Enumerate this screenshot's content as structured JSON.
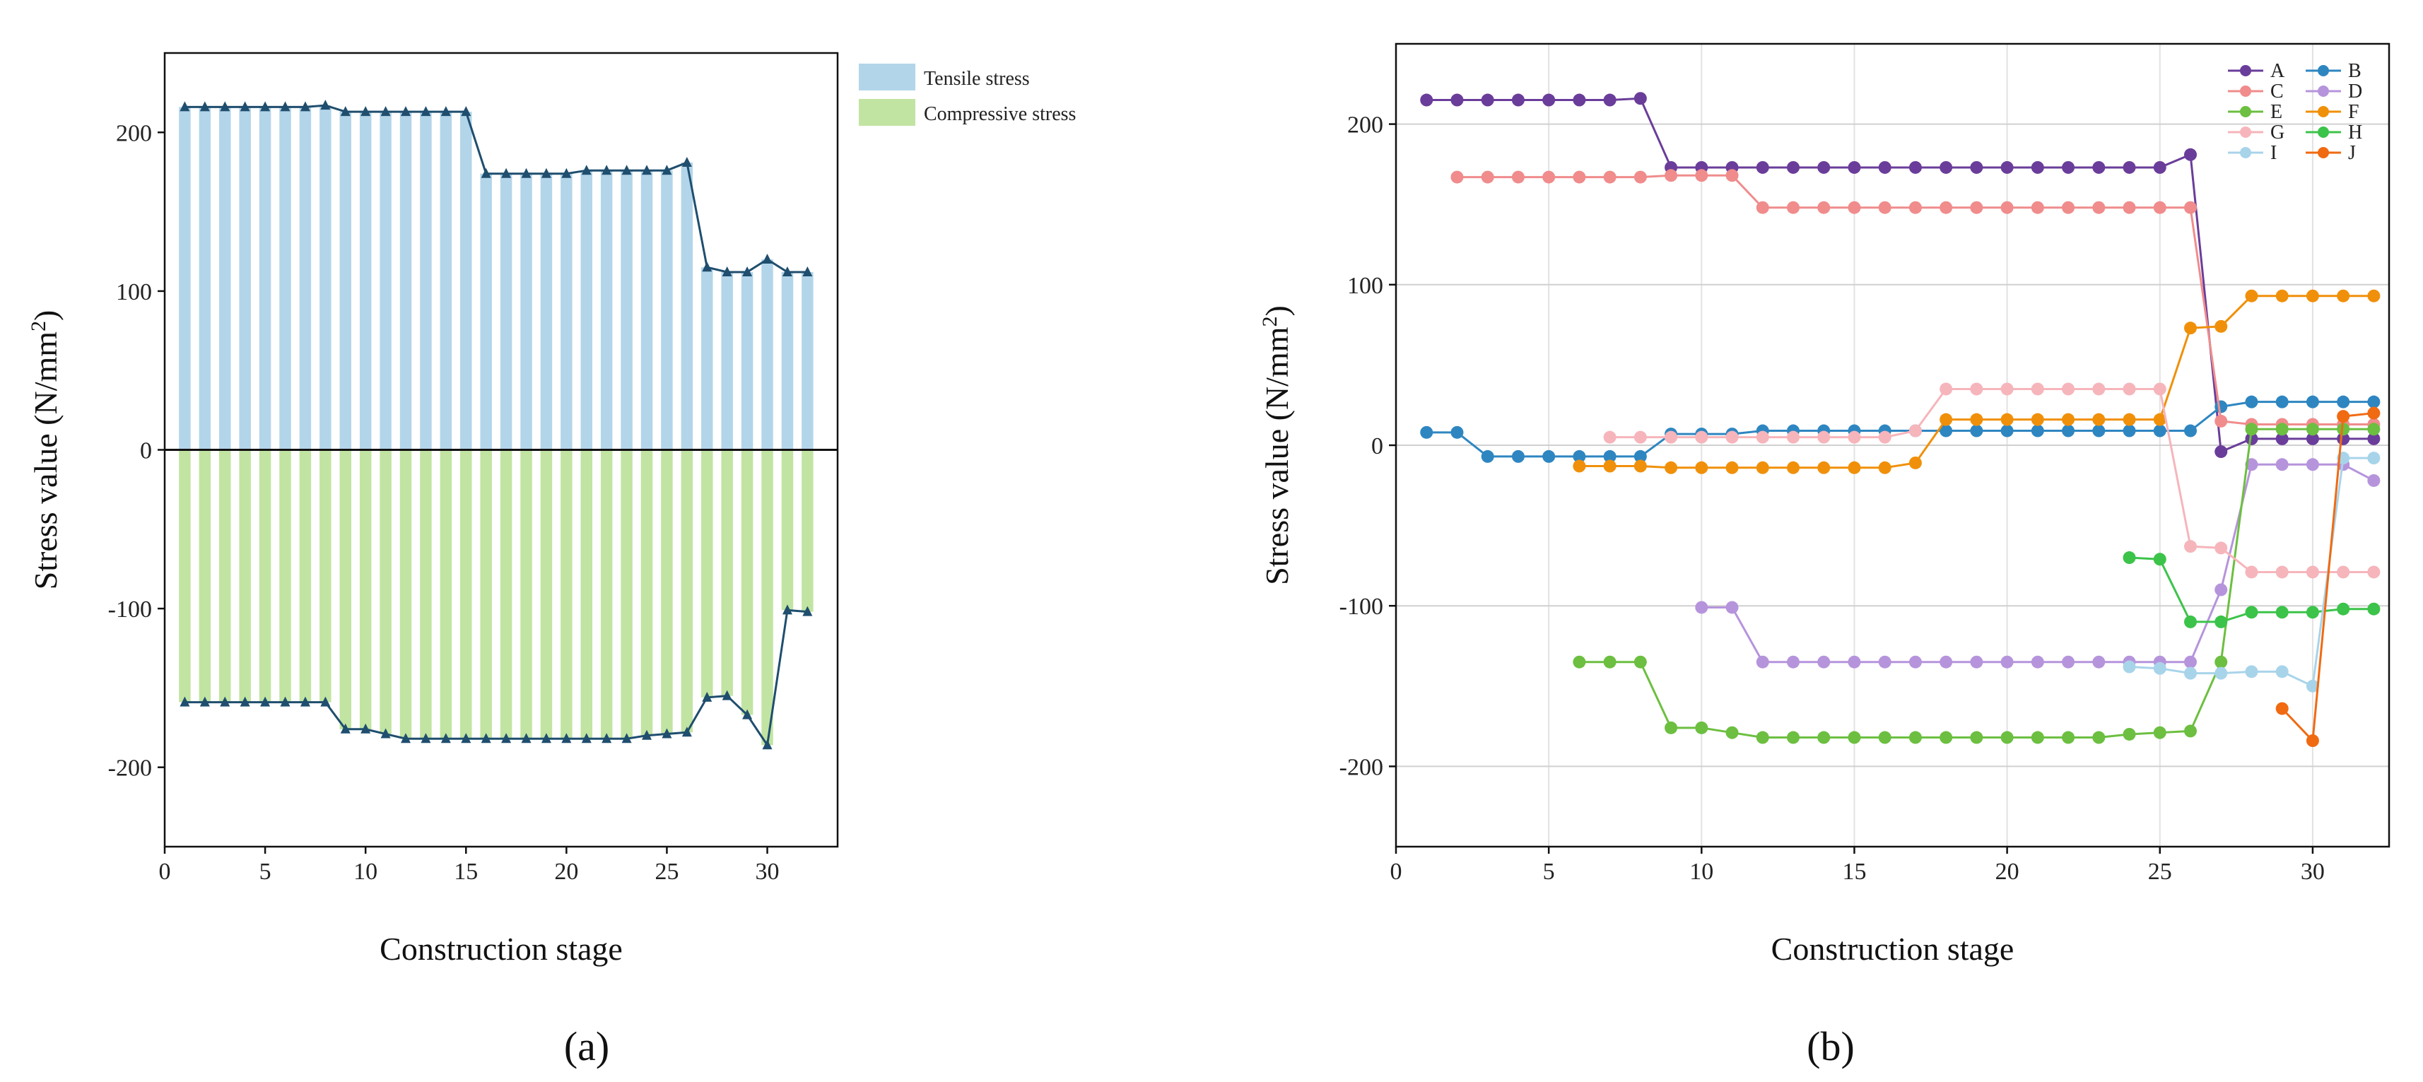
{
  "panel_labels": [
    "(a)",
    "(b)"
  ],
  "chart_data": [
    {
      "type": "bar",
      "panel": "(a)",
      "xlabel": "Construction stage",
      "ylabel": "Stress value (N/mm²)",
      "xlim": [
        0,
        33.5
      ],
      "ylim": [
        -250,
        250
      ],
      "xticks": [
        0,
        5,
        10,
        15,
        20,
        25,
        30
      ],
      "yticks": [
        -200,
        -100,
        0,
        100,
        200
      ],
      "grid": false,
      "legend_position": "top-right",
      "colors": {
        "tensile": "#b3d5ea",
        "compressive": "#c2e4a2",
        "line": "#1f4e6e"
      },
      "x": [
        1,
        2,
        3,
        4,
        5,
        6,
        7,
        8,
        9,
        10,
        11,
        12,
        13,
        14,
        15,
        16,
        17,
        18,
        19,
        20,
        21,
        22,
        23,
        24,
        25,
        26,
        27,
        28,
        29,
        30,
        31,
        32
      ],
      "series": [
        {
          "name": "Tensile stress",
          "values": [
            216,
            216,
            216,
            216,
            216,
            216,
            216,
            217,
            213,
            213,
            213,
            213,
            213,
            213,
            213,
            174,
            174,
            174,
            174,
            174,
            176,
            176,
            176,
            176,
            176,
            181,
            115,
            112,
            112,
            120,
            112,
            112
          ]
        },
        {
          "name": "Compressive stress",
          "values": [
            -159,
            -159,
            -159,
            -159,
            -159,
            -159,
            -159,
            -159,
            -176,
            -176,
            -179,
            -182,
            -182,
            -182,
            -182,
            -182,
            -182,
            -182,
            -182,
            -182,
            -182,
            -182,
            -182,
            -180,
            -179,
            -178,
            -156,
            -155,
            -167,
            -186,
            -101,
            -102
          ]
        }
      ]
    },
    {
      "type": "line",
      "panel": "(b)",
      "xlabel": "Construction stage",
      "ylabel": "Stress value (N/mm²)",
      "xlim": [
        0,
        32.5
      ],
      "ylim": [
        -250,
        250
      ],
      "xticks": [
        0,
        5,
        10,
        15,
        20,
        25,
        30
      ],
      "yticks": [
        -200,
        -100,
        0,
        100,
        200
      ],
      "grid": true,
      "legend_position": "top-right",
      "series": [
        {
          "name": "A",
          "color": "#6a3d9a",
          "x": [
            1,
            2,
            3,
            4,
            5,
            6,
            7,
            8,
            9,
            10,
            11,
            12,
            13,
            14,
            15,
            16,
            17,
            18,
            19,
            20,
            21,
            22,
            23,
            24,
            25,
            26,
            27,
            28,
            29,
            30,
            31,
            32
          ],
          "values": [
            215,
            215,
            215,
            215,
            215,
            215,
            215,
            216,
            173,
            173,
            173,
            173,
            173,
            173,
            173,
            173,
            173,
            173,
            173,
            173,
            173,
            173,
            173,
            173,
            173,
            181,
            -4,
            4,
            4,
            4,
            4,
            4
          ]
        },
        {
          "name": "B",
          "color": "#2e86c1",
          "x": [
            1,
            2,
            3,
            4,
            5,
            6,
            7,
            8,
            9,
            10,
            11,
            12,
            13,
            14,
            15,
            16,
            17,
            18,
            19,
            20,
            21,
            22,
            23,
            24,
            25,
            26,
            27,
            28,
            29,
            30,
            31,
            32
          ],
          "values": [
            8,
            8,
            -7,
            -7,
            -7,
            -7,
            -7,
            -7,
            7,
            7,
            7,
            9,
            9,
            9,
            9,
            9,
            9,
            9,
            9,
            9,
            9,
            9,
            9,
            9,
            9,
            9,
            24,
            27,
            27,
            27,
            27,
            27
          ]
        },
        {
          "name": "C",
          "color": "#f08c8c",
          "x": [
            2,
            3,
            4,
            5,
            6,
            7,
            8,
            9,
            10,
            11,
            12,
            13,
            14,
            15,
            16,
            17,
            18,
            19,
            20,
            21,
            22,
            23,
            24,
            25,
            26,
            27,
            28,
            29,
            30,
            31,
            32
          ],
          "values": [
            167,
            167,
            167,
            167,
            167,
            167,
            167,
            168,
            168,
            168,
            148,
            148,
            148,
            148,
            148,
            148,
            148,
            148,
            148,
            148,
            148,
            148,
            148,
            148,
            148,
            15,
            13,
            13,
            13,
            13,
            13
          ]
        },
        {
          "name": "D",
          "color": "#b694dc",
          "x": [
            10,
            11,
            12,
            13,
            14,
            15,
            16,
            17,
            18,
            19,
            20,
            21,
            22,
            23,
            24,
            25,
            26,
            27,
            28,
            29,
            30,
            31,
            32
          ],
          "values": [
            -101,
            -101,
            -135,
            -135,
            -135,
            -135,
            -135,
            -135,
            -135,
            -135,
            -135,
            -135,
            -135,
            -135,
            -135,
            -135,
            -135,
            -90,
            -12,
            -12,
            -12,
            -12,
            -22
          ]
        },
        {
          "name": "E",
          "color": "#6cbf40",
          "x": [
            6,
            7,
            8,
            9,
            10,
            11,
            12,
            13,
            14,
            15,
            16,
            17,
            18,
            19,
            20,
            21,
            22,
            23,
            24,
            25,
            26,
            27,
            28,
            29,
            30,
            31,
            32
          ],
          "values": [
            -135,
            -135,
            -135,
            -176,
            -176,
            -179,
            -182,
            -182,
            -182,
            -182,
            -182,
            -182,
            -182,
            -182,
            -182,
            -182,
            -182,
            -182,
            -180,
            -179,
            -178,
            -135,
            10,
            10,
            10,
            10,
            10
          ]
        },
        {
          "name": "F",
          "color": "#f0900a",
          "x": [
            6,
            7,
            8,
            9,
            10,
            11,
            12,
            13,
            14,
            15,
            16,
            17,
            18,
            19,
            20,
            21,
            22,
            23,
            24,
            25,
            26,
            27,
            28,
            29,
            30,
            31,
            32
          ],
          "values": [
            -13,
            -13,
            -13,
            -14,
            -14,
            -14,
            -14,
            -14,
            -14,
            -14,
            -14,
            -11,
            16,
            16,
            16,
            16,
            16,
            16,
            16,
            16,
            73,
            74,
            93,
            93,
            93,
            93,
            93
          ]
        },
        {
          "name": "G",
          "color": "#f6b5bb",
          "x": [
            7,
            8,
            9,
            10,
            11,
            12,
            13,
            14,
            15,
            16,
            17,
            18,
            19,
            20,
            21,
            22,
            23,
            24,
            25,
            26,
            27,
            28,
            29,
            30,
            31,
            32
          ],
          "values": [
            5,
            5,
            5,
            5,
            5,
            5,
            5,
            5,
            5,
            5,
            9,
            35,
            35,
            35,
            35,
            35,
            35,
            35,
            35,
            -63,
            -64,
            -79,
            -79,
            -79,
            -79,
            -79
          ]
        },
        {
          "name": "H",
          "color": "#3cc34a",
          "x": [
            24,
            25,
            26,
            27,
            28,
            29,
            30,
            31,
            32
          ],
          "values": [
            -70,
            -71,
            -110,
            -110,
            -104,
            -104,
            -104,
            -102,
            -102
          ]
        },
        {
          "name": "I",
          "color": "#a8d4ea",
          "x": [
            24,
            25,
            26,
            27,
            28,
            29,
            30,
            31,
            32
          ],
          "values": [
            -138,
            -139,
            -142,
            -142,
            -141,
            -141,
            -150,
            -8,
            -8
          ]
        },
        {
          "name": "J",
          "color": "#f06a12",
          "x": [
            29,
            30,
            31,
            32
          ],
          "values": [
            -164,
            -184,
            18,
            20
          ]
        }
      ]
    }
  ]
}
